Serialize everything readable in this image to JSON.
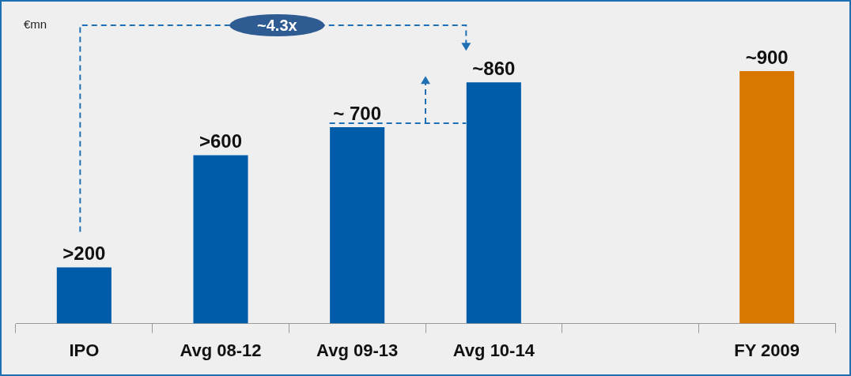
{
  "chart_data": {
    "type": "bar",
    "ylabel": "€mn",
    "categories": [
      "IPO",
      "Avg 08-12",
      "Avg 09-13",
      "Avg 10-14",
      null,
      "FY 2009"
    ],
    "values": [
      200,
      600,
      700,
      860,
      null,
      900
    ],
    "colors": [
      "#005ca9",
      "#005ca9",
      "#005ca9",
      "#005ca9",
      "#005ca9",
      "#d97800"
    ],
    "value_labels": [
      ">200",
      ">600",
      "~ 700",
      "~860",
      null,
      "~900"
    ],
    "annotations": [
      "~4.3x"
    ],
    "legend": false
  }
}
